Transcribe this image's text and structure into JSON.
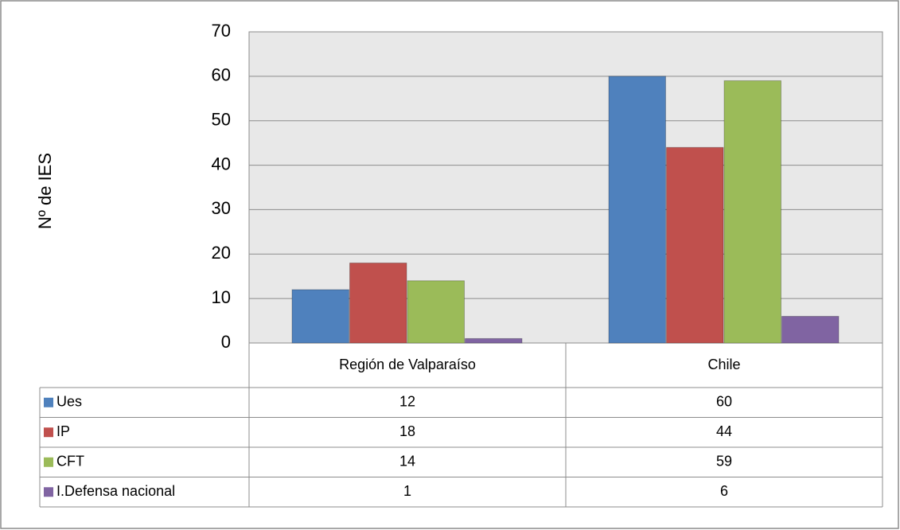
{
  "chart_data": {
    "type": "bar",
    "y_label": "Nº de IES",
    "categories": [
      "Región de Valparaíso",
      "Chile"
    ],
    "series": [
      {
        "name": "Ues",
        "color": "#4f81bd",
        "values": [
          12,
          60
        ]
      },
      {
        "name": "IP",
        "color": "#c0504d",
        "values": [
          18,
          44
        ]
      },
      {
        "name": "CFT",
        "color": "#9bbb59",
        "values": [
          14,
          59
        ]
      },
      {
        "name": "I.Defensa nacional",
        "color": "#8064a2",
        "values": [
          1,
          6
        ]
      }
    ],
    "ylim": [
      0,
      70
    ],
    "yticks": [
      0,
      10,
      20,
      30,
      40,
      50,
      60,
      70
    ],
    "grid": true,
    "data_table": true
  }
}
